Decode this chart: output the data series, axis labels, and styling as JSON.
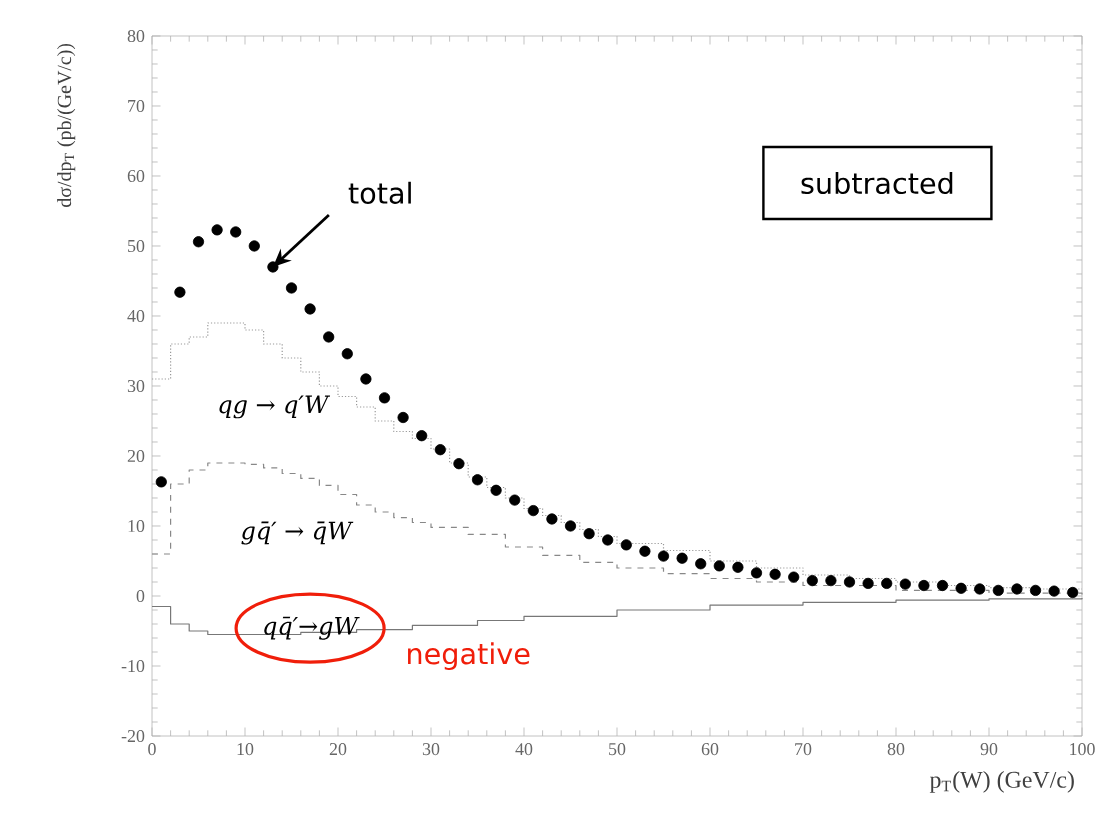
{
  "chart_data": {
    "type": "scatter",
    "xlabel": "p$_{T}$(W) (GeV/c)",
    "ylabel": "dσ/dp$_{T}$ (pb/(GeV/c))",
    "xlim": [
      0,
      100
    ],
    "xticks": [
      0,
      10,
      20,
      30,
      40,
      50,
      60,
      70,
      80,
      90,
      100
    ],
    "ylim": [
      -20,
      80
    ],
    "yticks": [
      -20,
      -10,
      0,
      10,
      20,
      30,
      40,
      50,
      60,
      70,
      80
    ],
    "grid": false,
    "series": [
      {
        "type": "scatter",
        "marker": "circle",
        "color": "#000000",
        "x": [
          1,
          3,
          5,
          7,
          9,
          11,
          13,
          15,
          17,
          19,
          21,
          23,
          25,
          27,
          29,
          31,
          33,
          35,
          37,
          39,
          41,
          43,
          45,
          47,
          49,
          51,
          53,
          55,
          57,
          59,
          61,
          63,
          65,
          67,
          69,
          71,
          73,
          75,
          77,
          79,
          81,
          83,
          85,
          87,
          89,
          91,
          93,
          95,
          97,
          99
        ],
        "values": [
          16.3,
          43.4,
          50.6,
          52.3,
          52,
          50,
          47,
          44,
          41,
          37,
          34.6,
          31,
          28.3,
          25.5,
          22.9,
          20.9,
          18.9,
          16.6,
          15.1,
          13.7,
          12.2,
          11,
          10,
          8.9,
          8,
          7.3,
          6.4,
          5.7,
          5.4,
          4.6,
          4.3,
          4.1,
          3.3,
          3.1,
          2.7,
          2.2,
          2.2,
          2,
          1.8,
          1.8,
          1.7,
          1.5,
          1.5,
          1.1,
          1,
          0.8,
          1,
          0.8,
          0.7,
          0.5
        ]
      },
      {
        "type": "step",
        "line_style": "dotted",
        "color": "#999999",
        "x": [
          0,
          2,
          4,
          6,
          8,
          10,
          12,
          14,
          16,
          18,
          20,
          22,
          24,
          26,
          28,
          30,
          32,
          34,
          36,
          38,
          40,
          42,
          44,
          46,
          48,
          50,
          55,
          60,
          65,
          70,
          75,
          80,
          85,
          90,
          95,
          100
        ],
        "values": [
          31,
          36,
          37,
          39,
          39,
          38,
          36,
          34,
          32,
          30,
          28.5,
          27,
          25,
          23.5,
          22.5,
          21,
          19,
          17,
          15.5,
          14,
          12.5,
          11.5,
          10.5,
          9.5,
          8.5,
          7.5,
          6.5,
          5,
          4,
          3,
          2.5,
          2,
          1.5,
          1.2,
          1,
          1
        ]
      },
      {
        "type": "step",
        "line_style": "dashed",
        "color": "#888888",
        "x": [
          0,
          2,
          4,
          6,
          8,
          10,
          12,
          14,
          16,
          18,
          20,
          22,
          24,
          26,
          28,
          30,
          34,
          38,
          42,
          46,
          50,
          55,
          60,
          65,
          70,
          80,
          90,
          100
        ],
        "values": [
          6,
          16,
          18,
          19,
          19,
          18.8,
          18.3,
          17.5,
          16.8,
          15.8,
          14.5,
          13,
          12,
          11.2,
          10.5,
          9.8,
          8.8,
          7,
          5.8,
          4.8,
          4,
          3.2,
          2.5,
          2,
          1.5,
          0.8,
          0.4,
          0.2
        ]
      },
      {
        "type": "step",
        "line_style": "solid",
        "color": "#777777",
        "x": [
          0,
          2,
          4,
          6,
          10,
          16,
          22,
          28,
          35,
          40,
          50,
          60,
          70,
          80,
          90,
          100
        ],
        "values": [
          -1.5,
          -4,
          -5,
          -5.5,
          -5.5,
          -5.2,
          -4.8,
          -4.2,
          -3.5,
          -2.9,
          -2,
          -1.3,
          -0.9,
          -0.6,
          -0.4,
          -0.3
        ]
      }
    ],
    "annotations": [
      {
        "text": "total",
        "x": 13,
        "y": 47
      },
      "subtracted",
      "qg → q′W",
      "gq̄′ → q̄W",
      {
        "text": "qq̄′→gW",
        "x": 17,
        "y": -4.6
      },
      "negative"
    ]
  }
}
